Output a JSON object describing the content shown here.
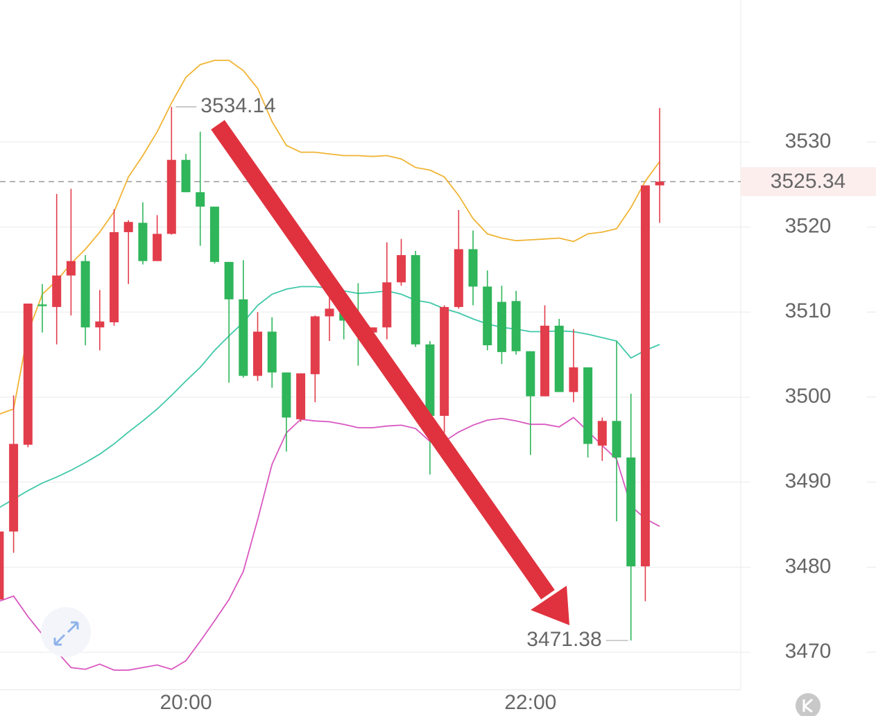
{
  "chart_data": {
    "type": "candlestick",
    "categories": [
      null,
      null,
      null,
      null,
      null,
      null,
      null,
      null,
      null,
      null,
      null,
      null,
      null,
      "20:00",
      null,
      null,
      null,
      null,
      null,
      null,
      null,
      null,
      null,
      null,
      null,
      null,
      null,
      null,
      null,
      null,
      null,
      null,
      null,
      null,
      null,
      null,
      null,
      "22:00",
      null,
      null,
      null,
      null,
      null,
      null,
      null,
      null,
      null
    ],
    "open": [
      3476.2,
      3484.2,
      3494.4,
      3510.9,
      3510.6,
      3514.3,
      3516.0,
      3508.2,
      3508.8,
      3519.4,
      3520.5,
      3516.0,
      3519.2,
      3527.9,
      3524.1,
      3522.4,
      3515.9,
      3511.5,
      3502.5,
      3507.7,
      3502.9,
      3497.4,
      3502.7,
      3509.5,
      3509.9,
      3509.0,
      3507.6,
      3508.2,
      3513.5,
      3516.7,
      3506.2,
      3497.8,
      3510.6,
      3517.4,
      3513.0,
      3511.2,
      3511.3,
      3505.4,
      3500.1,
      3508.4,
      3500.6,
      3503.5,
      3494.3,
      3497.2,
      3492.9,
      3480.1,
      3524.9
    ],
    "high": [
      3484.5,
      3500.2,
      3511.0,
      3513.3,
      3523.9,
      3524.5,
      3516.7,
      3512.6,
      3522.1,
      3520.8,
      3522.9,
      3521.4,
      3534.14,
      3528.6,
      3531.2,
      3522.4,
      3515.9,
      3516.1,
      3510.0,
      3509.4,
      3502.9,
      3502.8,
      3509.6,
      3511.7,
      3511.7,
      3513.4,
      3508.2,
      3518.2,
      3518.6,
      3517.2,
      3506.6,
      3510.8,
      3522.0,
      3519.6,
      3514.9,
      3513.1,
      3512.5,
      3505.4,
      3510.8,
      3509.2,
      3508.0,
      3503.5,
      3497.6,
      3506.6,
      3500.4,
      3524.9,
      3534.0
    ],
    "low": [
      3472.7,
      3481.7,
      3494.1,
      3507.6,
      3506.2,
      3509.6,
      3506.1,
      3505.5,
      3508.4,
      3513.3,
      3515.6,
      3516.0,
      3519.1,
      3524.1,
      3517.8,
      3515.7,
      3501.7,
      3502.3,
      3501.9,
      3501.1,
      3493.6,
      3497.1,
      3499.4,
      3506.6,
      3506.8,
      3503.7,
      3506.0,
      3506.8,
      3513.1,
      3505.9,
      3490.9,
      3495.8,
      3510.4,
      3510.8,
      3505.5,
      3503.9,
      3505.0,
      3493.2,
      3500.1,
      3500.6,
      3499.4,
      3492.9,
      3492.5,
      3485.4,
      3471.38,
      3476.0,
      3520.5
    ],
    "close": [
      3484.2,
      3494.5,
      3511.0,
      3510.7,
      3514.3,
      3516.0,
      3508.2,
      3508.9,
      3519.4,
      3520.6,
      3516.0,
      3519.2,
      3527.9,
      3524.1,
      3522.4,
      3515.9,
      3511.5,
      3502.5,
      3507.7,
      3502.9,
      3497.6,
      3502.8,
      3509.5,
      3510.4,
      3509.0,
      3508.0,
      3508.2,
      3513.5,
      3516.7,
      3506.2,
      3497.8,
      3510.6,
      3517.4,
      3513.0,
      3506.1,
      3505.3,
      3505.4,
      3500.1,
      3508.4,
      3500.6,
      3503.5,
      3494.5,
      3497.2,
      3492.9,
      3480.1,
      3524.9,
      3525.34
    ],
    "up_color": "#e23d4b",
    "down_color": "#2fb55a",
    "lines": [
      {
        "color": "#f0b433",
        "values": [
          3498.0,
          3498.6,
          3507.6,
          3512.1,
          3513.7,
          3515.7,
          3517.4,
          3519.4,
          3521.8,
          3525.9,
          3528.4,
          3531.2,
          3534.6,
          3537.6,
          3539.1,
          3539.6,
          3539.6,
          3538.4,
          3536.3,
          3532.4,
          3529.6,
          3528.8,
          3528.8,
          3528.6,
          3528.4,
          3528.4,
          3528.3,
          3528.4,
          3528.0,
          3527.0,
          3526.7,
          3525.9,
          3523.7,
          3521.0,
          3519.2,
          3518.7,
          3518.4,
          3518.5,
          3518.6,
          3518.7,
          3518.3,
          3519.2,
          3519.4,
          3519.8,
          3522.3,
          3525.4,
          3527.7
        ]
      },
      {
        "color": "#3fc8a8",
        "values": [
          3487.0,
          3488.0,
          3489.0,
          3489.9,
          3490.6,
          3491.4,
          3492.3,
          3493.3,
          3494.5,
          3495.9,
          3497.2,
          3498.6,
          3500.2,
          3501.9,
          3503.5,
          3505.5,
          3507.2,
          3508.8,
          3510.8,
          3512.1,
          3512.7,
          3513.0,
          3513.0,
          3512.8,
          3512.5,
          3512.2,
          3512.3,
          3512.5,
          3512.1,
          3511.4,
          3511.1,
          3510.4,
          3509.9,
          3509.2,
          3508.6,
          3508.2,
          3508.0,
          3507.7,
          3507.7,
          3507.8,
          3507.7,
          3507.4,
          3507.0,
          3506.6,
          3504.6,
          3505.5,
          3506.2
        ]
      },
      {
        "color": "#d957c0",
        "values": [
          3476.0,
          3476.6,
          3474.2,
          3472.1,
          3470.1,
          3468.2,
          3468.0,
          3468.6,
          3467.9,
          3467.9,
          3468.2,
          3468.5,
          3468.0,
          3469.0,
          3471.3,
          3473.7,
          3476.2,
          3479.5,
          3485.6,
          3492.1,
          3495.8,
          3497.4,
          3497.2,
          3497.1,
          3496.8,
          3496.4,
          3496.4,
          3496.6,
          3496.7,
          3496.3,
          3494.8,
          3494.8,
          3495.9,
          3496.7,
          3497.3,
          3497.5,
          3497.2,
          3496.8,
          3496.8,
          3496.5,
          3497.6,
          3496.0,
          3494.3,
          3492.7,
          3487.2,
          3485.7,
          3484.8
        ]
      }
    ],
    "ylim": [
      3465.6,
      3546.7
    ],
    "yticks": [
      3470,
      3480,
      3490,
      3500,
      3510,
      3520,
      3530
    ],
    "grid": true,
    "max_price": 3534.14,
    "min_price": 3471.38,
    "last_price": 3525.34
  }
}
